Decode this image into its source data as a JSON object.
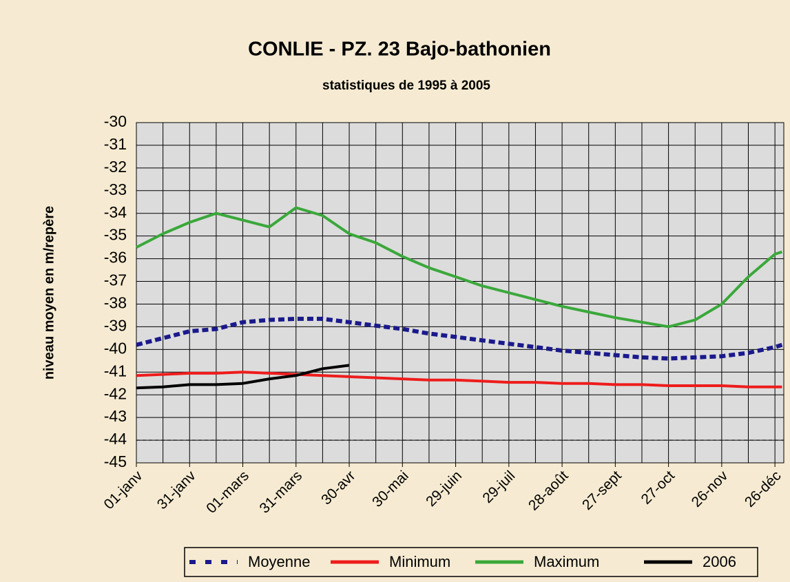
{
  "chart_data": {
    "type": "line",
    "title": "CONLIE - PZ. 23 Bajo-bathonien",
    "subtitle": "statistiques de 1995 à 2005",
    "y_label": "niveau moyen en m/repère",
    "x": [
      0,
      15,
      30,
      45,
      60,
      75,
      90,
      105,
      120,
      135,
      150,
      165,
      180,
      195,
      210,
      225,
      240,
      255,
      270,
      285,
      300,
      315,
      330,
      345,
      360,
      364
    ],
    "series": [
      {
        "name": "Moyenne",
        "color": "#1a1a8c",
        "dashed": true,
        "values": [
          -39.8,
          -39.5,
          -39.2,
          -39.1,
          -38.8,
          -38.7,
          -38.65,
          -38.65,
          -38.8,
          -38.95,
          -39.1,
          -39.3,
          -39.45,
          -39.6,
          -39.75,
          -39.9,
          -40.05,
          -40.15,
          -40.25,
          -40.35,
          -40.4,
          -40.35,
          -40.3,
          -40.15,
          -39.9,
          -39.8
        ]
      },
      {
        "name": "Minimum",
        "color": "#ee1c1c",
        "values": [
          -41.15,
          -41.1,
          -41.05,
          -41.05,
          -41.0,
          -41.05,
          -41.1,
          -41.15,
          -41.2,
          -41.25,
          -41.3,
          -41.35,
          -41.35,
          -41.4,
          -41.45,
          -41.45,
          -41.5,
          -41.5,
          -41.55,
          -41.55,
          -41.6,
          -41.6,
          -41.6,
          -41.65,
          -41.65,
          -41.65
        ]
      },
      {
        "name": "Maximum",
        "color": "#3aa83a",
        "values": [
          -35.5,
          -34.9,
          -34.4,
          -34.0,
          -34.3,
          -34.6,
          -33.75,
          -34.1,
          -34.9,
          -35.3,
          -35.9,
          -36.4,
          -36.8,
          -37.2,
          -37.5,
          -37.8,
          -38.1,
          -38.35,
          -38.6,
          -38.8,
          -39.0,
          -38.7,
          -38.0,
          -36.8,
          -35.8,
          -35.7
        ]
      },
      {
        "name": "2006",
        "color": "#000000",
        "values": [
          -41.7,
          -41.65,
          -41.55,
          -41.55,
          -41.5,
          -41.3,
          -41.15,
          -40.85,
          -40.7,
          null,
          null,
          null,
          null,
          null,
          null,
          null,
          null,
          null,
          null,
          null,
          null,
          null,
          null,
          null,
          null,
          null
        ]
      }
    ],
    "xlim": [
      0,
      365
    ],
    "xticks": [
      {
        "value": 0,
        "label": "01-janv"
      },
      {
        "value": 30,
        "label": "31-janv"
      },
      {
        "value": 60,
        "label": "01-mars"
      },
      {
        "value": 90,
        "label": "31-mars"
      },
      {
        "value": 120,
        "label": "30-avr"
      },
      {
        "value": 150,
        "label": "30-mai"
      },
      {
        "value": 180,
        "label": "29-juin"
      },
      {
        "value": 210,
        "label": "29-juil"
      },
      {
        "value": 240,
        "label": "28-août"
      },
      {
        "value": 270,
        "label": "27-sept"
      },
      {
        "value": 300,
        "label": "27-oct"
      },
      {
        "value": 330,
        "label": "26-nov"
      },
      {
        "value": 360,
        "label": "26-déc"
      }
    ],
    "xminorticks": [
      15,
      45,
      75,
      105,
      135,
      165,
      195,
      225,
      255,
      285,
      315,
      345
    ],
    "ylim": [
      -45,
      -30
    ],
    "yticks": [
      -30,
      -31,
      -32,
      -33,
      -34,
      -35,
      -36,
      -37,
      -38,
      -39,
      -40,
      -41,
      -42,
      -43,
      -44,
      -45
    ],
    "reference_line": -44,
    "grid": true,
    "legend": "bottom"
  }
}
